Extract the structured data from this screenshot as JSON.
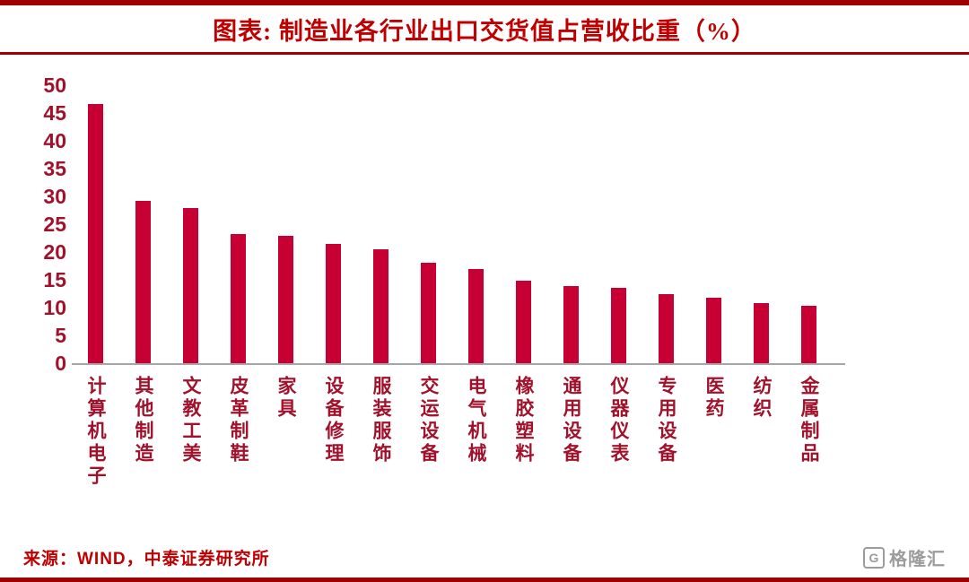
{
  "title": "图表:  制造业各行业出口交货值占营收比重（%）",
  "source": "来源：WIND，中泰证券研究所",
  "logo": {
    "icon": "G",
    "text": "格隆汇"
  },
  "colors": {
    "bar": "#C60032",
    "title_red": "#C00000",
    "rule_red": "#A00000",
    "axis_text": "#A0122C",
    "axis_line": "#A6A6A6",
    "logo_gray": "#9C9C9C"
  },
  "chart_data": {
    "type": "bar",
    "title": "制造业各行业出口交货值占营收比重（%）",
    "categories": [
      "计算机电子",
      "其他制造",
      "文教工美",
      "皮革制鞋",
      "家具",
      "设备修理",
      "服装服饰",
      "交运设备",
      "电气机械",
      "橡胶塑料",
      "通用设备",
      "仪器仪表",
      "专用设备",
      "医药",
      "纺织",
      "金属制品"
    ],
    "values": [
      46.6,
      29.2,
      27.9,
      23.2,
      22.9,
      21.5,
      20.5,
      18.1,
      17.0,
      14.8,
      13.9,
      13.6,
      12.4,
      11.7,
      10.8,
      10.4
    ],
    "xlabel": "",
    "ylabel": "",
    "ylim": [
      0,
      50
    ],
    "yticks": [
      0,
      5,
      10,
      15,
      20,
      25,
      30,
      35,
      40,
      45,
      50
    ],
    "grid": false,
    "legend": false,
    "bar_color": "#C60032"
  }
}
